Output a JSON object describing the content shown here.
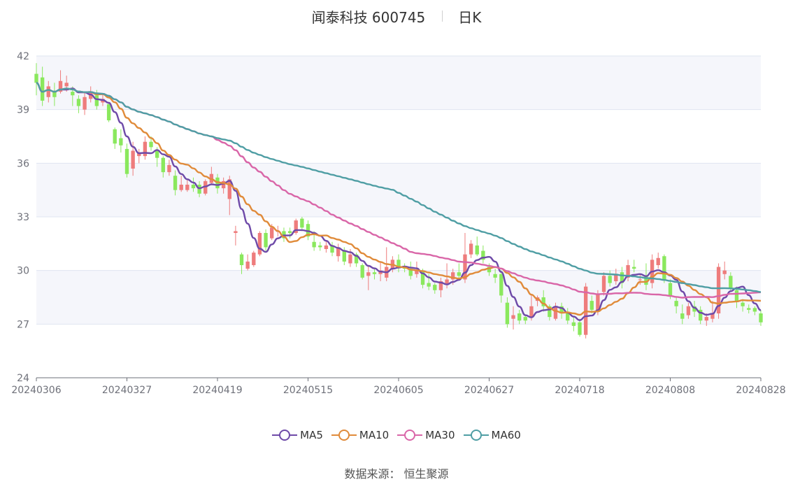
{
  "title": {
    "stock": "闻泰科技 600745",
    "period": "日K"
  },
  "source": {
    "label": "数据来源：",
    "value": "恒生聚源"
  },
  "colors": {
    "up": "#ee7c7c",
    "down": "#8ae85d",
    "grid": "#dfe4f0",
    "band": "#f5f6fb",
    "axis": "#6e7079"
  },
  "chart_data": {
    "type": "candlestick",
    "ylim": [
      24,
      42
    ],
    "yticks": [
      24,
      27,
      30,
      33,
      36,
      39,
      42
    ],
    "xtick_labels": [
      "20240306",
      "20240327",
      "20240419",
      "20240515",
      "20240605",
      "20240627",
      "20240718",
      "20240808",
      "20240828"
    ],
    "xtick_positions": [
      0,
      15,
      30,
      45,
      60,
      75,
      90,
      105,
      120
    ],
    "n_days": 121,
    "legend": [
      "MA5",
      "MA10",
      "MA30",
      "MA60"
    ],
    "ma_colors": [
      "#6e4aa8",
      "#e08b3a",
      "#d966a8",
      "#4f9ea4"
    ],
    "candles": [
      [
        41.0,
        40.5,
        41.6,
        39.8
      ],
      [
        40.8,
        39.5,
        41.4,
        39.2
      ],
      [
        39.7,
        40.3,
        40.6,
        39.4
      ],
      [
        40.0,
        39.7,
        40.5,
        39.2
      ],
      [
        40.0,
        40.6,
        41.2,
        39.9
      ],
      [
        40.3,
        40.5,
        40.9,
        40.0
      ],
      [
        40.0,
        39.8,
        40.3,
        39.2
      ],
      [
        39.6,
        39.2,
        39.8,
        38.8
      ],
      [
        39.0,
        39.7,
        40.0,
        38.7
      ],
      [
        39.6,
        40.0,
        40.3,
        39.4
      ],
      [
        39.8,
        39.2,
        40.1,
        39.0
      ],
      [
        39.4,
        39.6,
        39.9,
        39.2
      ],
      [
        39.3,
        38.4,
        39.4,
        38.3
      ],
      [
        37.9,
        37.1,
        38.0,
        36.8
      ],
      [
        37.4,
        37.0,
        37.9,
        36.6
      ],
      [
        36.8,
        35.4,
        37.1,
        35.2
      ],
      [
        35.7,
        36.7,
        37.2,
        35.3
      ],
      [
        36.4,
        36.6,
        36.8,
        36.0
      ],
      [
        36.4,
        37.2,
        37.5,
        36.2
      ],
      [
        37.2,
        36.9,
        37.5,
        36.7
      ],
      [
        36.7,
        36.3,
        36.9,
        35.8
      ],
      [
        36.3,
        35.5,
        36.4,
        35.2
      ],
      [
        35.5,
        35.9,
        36.2,
        35.3
      ],
      [
        35.3,
        34.5,
        35.6,
        34.2
      ],
      [
        34.5,
        34.8,
        35.3,
        34.4
      ],
      [
        34.5,
        34.8,
        35.1,
        34.4
      ],
      [
        34.8,
        34.6,
        35.2,
        34.4
      ],
      [
        34.8,
        34.3,
        35.0,
        34.1
      ],
      [
        34.3,
        35.0,
        35.1,
        34.2
      ],
      [
        34.9,
        35.4,
        35.8,
        34.8
      ],
      [
        35.2,
        34.6,
        35.4,
        34.3
      ],
      [
        34.6,
        35.0,
        35.2,
        34.3
      ],
      [
        34.0,
        35.1,
        35.3,
        33.1
      ],
      [
        32.1,
        32.2,
        32.5,
        31.4
      ],
      [
        30.9,
        30.3,
        31.0,
        29.8
      ],
      [
        30.1,
        30.5,
        30.9,
        30.0
      ],
      [
        30.3,
        31.0,
        31.1,
        30.2
      ],
      [
        30.9,
        32.1,
        32.2,
        30.8
      ],
      [
        32.1,
        31.3,
        32.3,
        31.1
      ],
      [
        31.8,
        32.4,
        32.6,
        31.7
      ],
      [
        32.2,
        32.2,
        32.5,
        31.9
      ],
      [
        32.2,
        31.8,
        32.4,
        31.6
      ],
      [
        32.2,
        32.1,
        32.4,
        31.8
      ],
      [
        32.1,
        32.8,
        32.9,
        32.0
      ],
      [
        32.9,
        32.4,
        33.0,
        32.2
      ],
      [
        32.6,
        31.9,
        32.8,
        31.7
      ],
      [
        31.6,
        31.3,
        32.2,
        31.1
      ],
      [
        31.4,
        31.3,
        31.6,
        31.1
      ],
      [
        31.2,
        31.4,
        31.7,
        31.0
      ],
      [
        31.4,
        31.0,
        31.6,
        30.8
      ],
      [
        30.8,
        31.3,
        31.5,
        30.5
      ],
      [
        31.1,
        30.5,
        31.3,
        30.3
      ],
      [
        30.4,
        30.9,
        31.2,
        30.2
      ],
      [
        30.9,
        30.4,
        31.0,
        30.2
      ],
      [
        30.3,
        29.6,
        30.4,
        29.5
      ],
      [
        29.7,
        29.9,
        30.3,
        28.9
      ],
      [
        29.9,
        29.8,
        30.1,
        29.5
      ],
      [
        29.8,
        30.0,
        30.5,
        29.4
      ],
      [
        29.6,
        30.2,
        31.3,
        29.4
      ],
      [
        30.1,
        30.6,
        30.8,
        29.9
      ],
      [
        30.6,
        30.2,
        30.9,
        29.9
      ],
      [
        30.2,
        30.1,
        30.4,
        29.9
      ],
      [
        30.1,
        29.7,
        30.5,
        29.5
      ],
      [
        29.8,
        30.0,
        30.5,
        29.6
      ],
      [
        30.0,
        29.2,
        30.1,
        29.0
      ],
      [
        29.3,
        29.1,
        29.8,
        28.9
      ],
      [
        29.2,
        28.9,
        29.3,
        28.7
      ],
      [
        28.9,
        29.4,
        29.6,
        28.5
      ],
      [
        29.2,
        29.5,
        30.4,
        29.0
      ],
      [
        29.5,
        29.9,
        30.1,
        29.2
      ],
      [
        29.9,
        29.7,
        30.4,
        29.5
      ],
      [
        29.5,
        30.9,
        32.1,
        29.3
      ],
      [
        30.9,
        31.5,
        31.7,
        30.7
      ],
      [
        31.4,
        30.9,
        31.9,
        30.8
      ],
      [
        31.1,
        30.6,
        31.4,
        30.4
      ],
      [
        30.2,
        29.9,
        30.4,
        29.7
      ],
      [
        29.8,
        29.6,
        30.1,
        29.3
      ],
      [
        29.8,
        28.6,
        30.0,
        28.2
      ],
      [
        28.2,
        27.0,
        28.5,
        26.8
      ],
      [
        27.3,
        27.5,
        28.0,
        26.7
      ],
      [
        27.6,
        27.2,
        27.8,
        27.0
      ],
      [
        27.4,
        27.2,
        27.5,
        27.0
      ],
      [
        27.4,
        28.0,
        28.7,
        27.2
      ],
      [
        28.3,
        28.5,
        28.6,
        28.0
      ],
      [
        28.5,
        28.0,
        28.9,
        27.7
      ],
      [
        28.0,
        27.4,
        28.1,
        27.2
      ],
      [
        27.3,
        28.0,
        28.2,
        27.2
      ],
      [
        28.0,
        27.6,
        28.2,
        27.3
      ],
      [
        27.6,
        27.2,
        27.9,
        27.0
      ],
      [
        27.1,
        26.9,
        27.4,
        26.6
      ],
      [
        27.1,
        26.4,
        27.3,
        26.3
      ],
      [
        26.4,
        29.1,
        29.3,
        26.2
      ],
      [
        28.3,
        27.8,
        28.6,
        27.6
      ],
      [
        27.7,
        28.7,
        28.9,
        27.5
      ],
      [
        28.8,
        29.7,
        29.9,
        28.6
      ],
      [
        29.7,
        29.3,
        30.0,
        29.1
      ],
      [
        29.4,
        29.8,
        30.1,
        29.2
      ],
      [
        29.9,
        29.3,
        30.2,
        29.0
      ],
      [
        29.6,
        30.3,
        30.6,
        29.4
      ],
      [
        30.2,
        30.1,
        30.6,
        29.9
      ],
      [
        29.5,
        29.5,
        29.8,
        29.2
      ],
      [
        29.7,
        29.2,
        30.4,
        28.9
      ],
      [
        29.3,
        30.6,
        30.9,
        29.0
      ],
      [
        30.3,
        30.7,
        31.0,
        30.1
      ],
      [
        30.8,
        29.5,
        30.9,
        29.3
      ],
      [
        29.3,
        28.6,
        29.5,
        28.4
      ],
      [
        28.3,
        28.0,
        28.5,
        27.6
      ],
      [
        27.6,
        27.3,
        28.1,
        27.0
      ],
      [
        27.5,
        28.0,
        28.2,
        27.3
      ],
      [
        28.0,
        27.7,
        28.3,
        27.4
      ],
      [
        27.8,
        27.2,
        28.0,
        27.0
      ],
      [
        27.2,
        27.4,
        27.6,
        26.9
      ],
      [
        27.3,
        27.6,
        28.3,
        27.1
      ],
      [
        27.6,
        30.2,
        30.4,
        27.3
      ],
      [
        29.8,
        30.0,
        30.5,
        29.5
      ],
      [
        29.7,
        29.0,
        29.9,
        28.8
      ],
      [
        28.9,
        28.3,
        29.1,
        27.9
      ],
      [
        28.2,
        28.0,
        28.4,
        27.7
      ],
      [
        27.9,
        27.8,
        28.1,
        27.6
      ],
      [
        27.9,
        27.7,
        28.0,
        27.5
      ],
      [
        27.6,
        27.1,
        27.8,
        26.9
      ]
    ]
  }
}
